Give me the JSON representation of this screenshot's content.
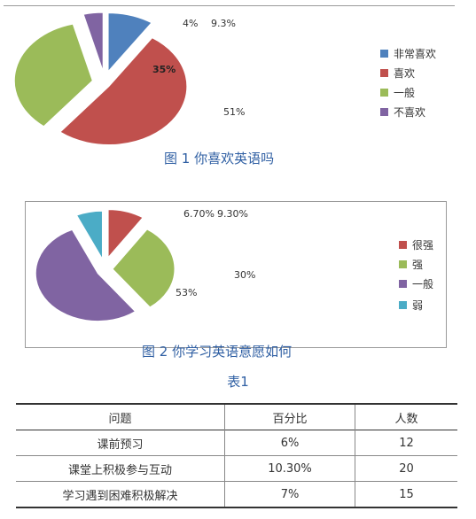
{
  "chart_data": [
    {
      "type": "pie",
      "title": "图 1 你喜欢英语吗",
      "categories": [
        "非常喜欢",
        "喜欢",
        "一般",
        "不喜欢"
      ],
      "values": [
        9.3,
        51,
        35,
        4
      ],
      "data_labels": [
        "9.3%",
        "51%",
        "35%",
        "4%"
      ],
      "colors": [
        "#4f81bd",
        "#c0504d",
        "#9bbb59",
        "#8064a2"
      ],
      "legend_position": "right",
      "exploded": true
    },
    {
      "type": "pie",
      "title": "图 2 你学习英语意愿如何",
      "categories": [
        "很强",
        "强",
        "一般",
        "弱"
      ],
      "values": [
        9.3,
        30,
        53,
        6.7
      ],
      "data_labels": [
        "9.30%",
        "30%",
        "53%",
        "6.70%"
      ],
      "colors": [
        "#c0504d",
        "#9bbb59",
        "#8064a2",
        "#4bacc6"
      ],
      "legend_position": "right",
      "exploded": true
    }
  ],
  "table": {
    "title": "表1",
    "headers": [
      "问题",
      "百分比",
      "人数"
    ],
    "rows": [
      [
        "课前预习",
        "6%",
        "12"
      ],
      [
        "课堂上积极参与互动",
        "10.30%",
        "20"
      ],
      [
        "学习遇到困难积极解决",
        "7%",
        "15"
      ]
    ]
  }
}
